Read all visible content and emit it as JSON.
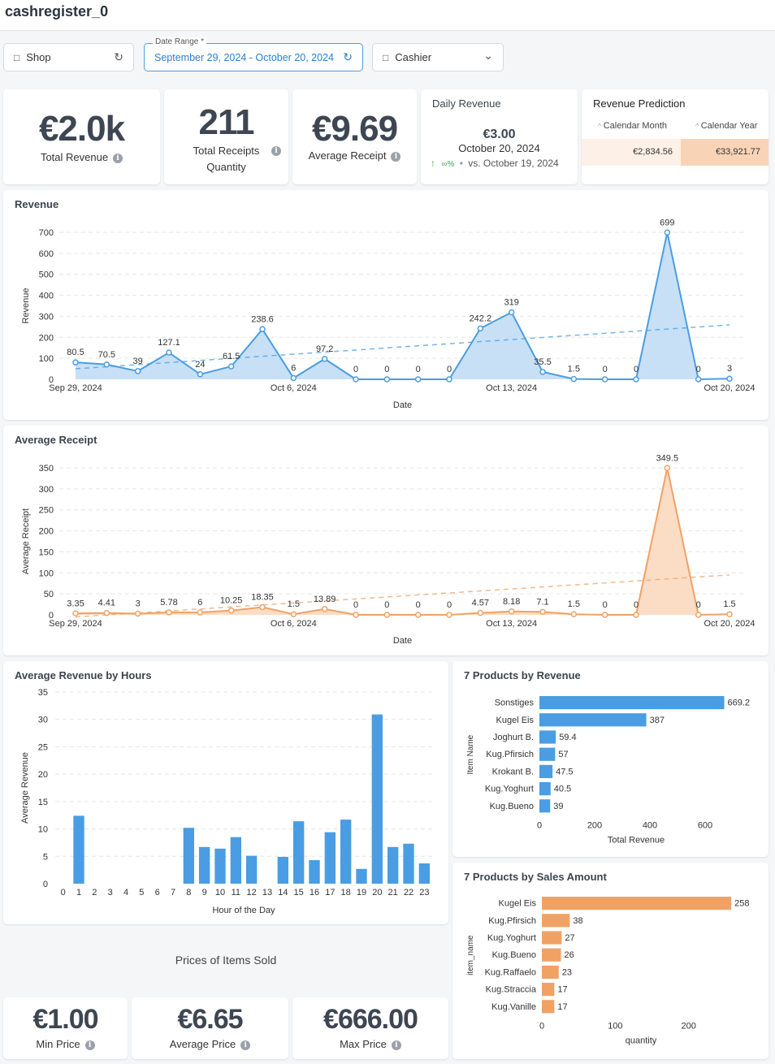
{
  "header": {
    "title": "cashregister_0"
  },
  "filters": {
    "shop": {
      "label": "Shop"
    },
    "date_range": {
      "label": "Date Range *",
      "value": "September 29, 2024 - October 20, 2024"
    },
    "cashier": {
      "label": "Cashier"
    }
  },
  "kpis": {
    "total_revenue": {
      "value": "€2.0k",
      "label": "Total Revenue"
    },
    "total_receipts": {
      "value": "211",
      "label_line1": "Total Receipts",
      "label_line2": "Quantity"
    },
    "average_receipt": {
      "value": "€9.69",
      "label": "Average Receipt"
    }
  },
  "daily_revenue": {
    "title": "Daily Revenue",
    "value": "€3.00",
    "date": "October 20, 2024",
    "change": "∞%",
    "compare": "vs. October 19, 2024",
    "up_color": "#3aa657"
  },
  "revenue_prediction": {
    "title": "Revenue Prediction",
    "col1": "Calendar Month",
    "col2": "Calendar Year",
    "val1": "€2,834.56",
    "val2": "€33,921.77"
  },
  "prices": {
    "title": "Prices of Items Sold",
    "min": {
      "value": "€1.00",
      "label": "Min Price"
    },
    "avg": {
      "value": "€6.65",
      "label": "Average Price"
    },
    "max": {
      "value": "€666.00",
      "label": "Max Price"
    }
  },
  "chart_data": [
    {
      "id": "revenue",
      "type": "area",
      "title": "Revenue",
      "xlabel": "Date",
      "ylabel": "Revenue",
      "color": "#4a9de2",
      "fill": "#c8e0f6",
      "ylim": [
        0,
        700
      ],
      "yticks": [
        0,
        100,
        200,
        300,
        400,
        500,
        600,
        700
      ],
      "xticks": [
        {
          "i": 0,
          "label": "Sep 29, 2024"
        },
        {
          "i": 7,
          "label": "Oct 6, 2024"
        },
        {
          "i": 14,
          "label": "Oct 13, 2024"
        },
        {
          "i": 21,
          "label": "Oct 20, 2024"
        }
      ],
      "values": [
        80.5,
        70.5,
        39,
        127.1,
        24,
        61.5,
        238.6,
        6,
        97.2,
        0,
        0,
        0,
        0,
        242.2,
        319,
        35.5,
        1.5,
        0,
        0,
        699,
        0,
        3
      ],
      "labels": [
        "80.5",
        "70.5",
        "39",
        "127.1",
        "24",
        "61.5",
        "238.6",
        "6",
        "97.2",
        "0",
        "0",
        "0",
        "0",
        "242.2",
        "319",
        "35.5",
        "1.5",
        "0",
        "0",
        "699",
        "0",
        "3"
      ],
      "trend": [
        50,
        259
      ],
      "grid": true
    },
    {
      "id": "avg_receipt",
      "type": "area",
      "title": "Average Receipt",
      "xlabel": "Date",
      "ylabel": "Average Receipt",
      "color": "#f0a265",
      "fill": "#fbdcc4",
      "ylim": [
        0,
        350
      ],
      "yticks": [
        0,
        50,
        100,
        150,
        200,
        250,
        300,
        350
      ],
      "xticks": [
        {
          "i": 0,
          "label": "Sep 29, 2024"
        },
        {
          "i": 7,
          "label": "Oct 6, 2024"
        },
        {
          "i": 14,
          "label": "Oct 13, 2024"
        },
        {
          "i": 21,
          "label": "Oct 20, 2024"
        }
      ],
      "values": [
        3.35,
        4.41,
        3,
        5.78,
        6,
        10.25,
        18.35,
        1.5,
        13.89,
        0,
        0,
        0,
        0,
        4.57,
        8.18,
        7.1,
        1.5,
        0,
        0,
        349.5,
        0,
        1.5
      ],
      "labels": [
        "3.35",
        "4.41",
        "3",
        "5.78",
        "6",
        "10.25",
        "18.35",
        "1.5",
        "13.89",
        "0",
        "0",
        "0",
        "0",
        "4.57",
        "8.18",
        "7.1",
        "1.5",
        "0",
        "0",
        "349.5",
        "0",
        "1.5"
      ],
      "trend": [
        -5,
        95
      ],
      "grid": true
    },
    {
      "id": "hours",
      "type": "bar",
      "title": "Average Revenue by Hours",
      "xlabel": "Hour of the Day",
      "ylabel": "Average Revenue",
      "color": "#4a9de2",
      "ylim": [
        0,
        35
      ],
      "yticks": [
        0,
        5,
        10,
        15,
        20,
        25,
        30,
        35
      ],
      "categories": [
        "0",
        "1",
        "2",
        "3",
        "4",
        "5",
        "6",
        "7",
        "8",
        "9",
        "10",
        "11",
        "12",
        "13",
        "14",
        "15",
        "16",
        "17",
        "18",
        "19",
        "20",
        "21",
        "22",
        "23"
      ],
      "values": [
        0,
        12.4,
        0,
        0,
        0,
        0,
        0,
        0,
        10.2,
        6.7,
        6.4,
        8.5,
        5.1,
        0,
        4.9,
        11.4,
        4.3,
        9.4,
        11.7,
        2.7,
        30.9,
        6.7,
        7.3,
        3.7
      ],
      "grid": true
    },
    {
      "id": "products_revenue",
      "type": "bar",
      "orientation": "horizontal",
      "title": "7 Products by Revenue",
      "xlabel": "Total Revenue",
      "ylabel": "Item Name",
      "color": "#4a9de2",
      "xlim": [
        0,
        700
      ],
      "xticks": [
        0,
        200,
        400,
        600
      ],
      "categories": [
        "Sonstiges",
        "Kugel Eis",
        "Joghurt B.",
        "Kug.Pfirsich",
        "Krokant B.",
        "Kug.Yoghurt",
        "Kug.Bueno"
      ],
      "values": [
        669.2,
        387,
        59.4,
        57,
        47.5,
        40.5,
        39
      ],
      "labels": [
        "669.2",
        "387",
        "59.4",
        "57",
        "47.5",
        "40.5",
        "39"
      ]
    },
    {
      "id": "products_sales",
      "type": "bar",
      "orientation": "horizontal",
      "title": "7 Products by Sales Amount",
      "xlabel": "quantity",
      "ylabel": "item_name",
      "color": "#f0a265",
      "xlim": [
        0,
        270
      ],
      "xticks": [
        0,
        100,
        200
      ],
      "categories": [
        "Kugel Eis",
        "Kug.Pfirsich",
        "Kug.Yoghurt",
        "Kug.Bueno",
        "Kug.Raffaelo",
        "Kug.Straccia",
        "Kug.Vanille"
      ],
      "values": [
        258,
        38,
        27,
        26,
        23,
        17,
        17
      ],
      "labels": [
        "258",
        "38",
        "27",
        "26",
        "23",
        "17",
        "17"
      ]
    }
  ]
}
